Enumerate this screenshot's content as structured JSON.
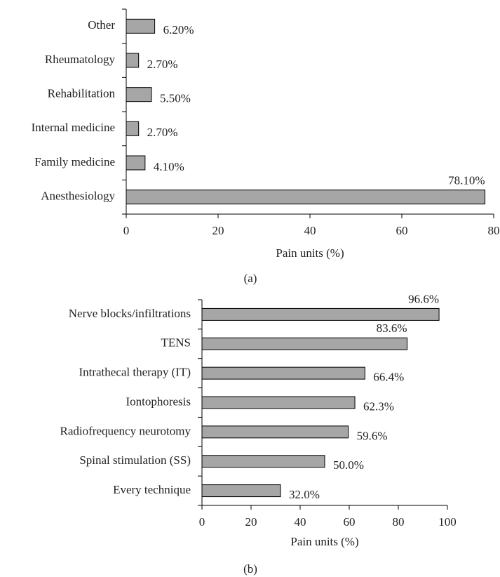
{
  "chart_data": [
    {
      "type": "bar",
      "orientation": "horizontal",
      "caption": "(a)",
      "categories": [
        "Other",
        "Rheumatology",
        "Rehabilitation",
        "Internal medicine",
        "Family medicine",
        "Anesthesiology"
      ],
      "values": [
        6.2,
        2.7,
        5.5,
        2.7,
        4.1,
        78.1
      ],
      "value_labels": [
        "6.20%",
        "2.70%",
        "5.50%",
        "2.70%",
        "4.10%",
        "78.10%"
      ],
      "color": "#a6a6a6",
      "xlabel": "Pain units (%)",
      "xlim": [
        0,
        80
      ],
      "xticks": [
        0,
        20,
        40,
        60,
        80
      ]
    },
    {
      "type": "bar",
      "orientation": "horizontal",
      "caption": "(b)",
      "categories": [
        "Nerve blocks/infiltrations",
        "TENS",
        "Intrathecal therapy (IT)",
        "Iontophoresis",
        "Radiofrequency neurotomy",
        "Spinal stimulation (SS)",
        "Every technique"
      ],
      "values": [
        96.6,
        83.6,
        66.4,
        62.3,
        59.6,
        50.0,
        32.0
      ],
      "value_labels": [
        "96.6%",
        "83.6%",
        "66.4%",
        "62.3%",
        "59.6%",
        "50.0%",
        "32.0%"
      ],
      "color": "#a6a6a6",
      "xlabel": "Pain units (%)",
      "xlim": [
        0,
        100
      ],
      "xticks": [
        0,
        20,
        40,
        60,
        80,
        100
      ]
    }
  ]
}
